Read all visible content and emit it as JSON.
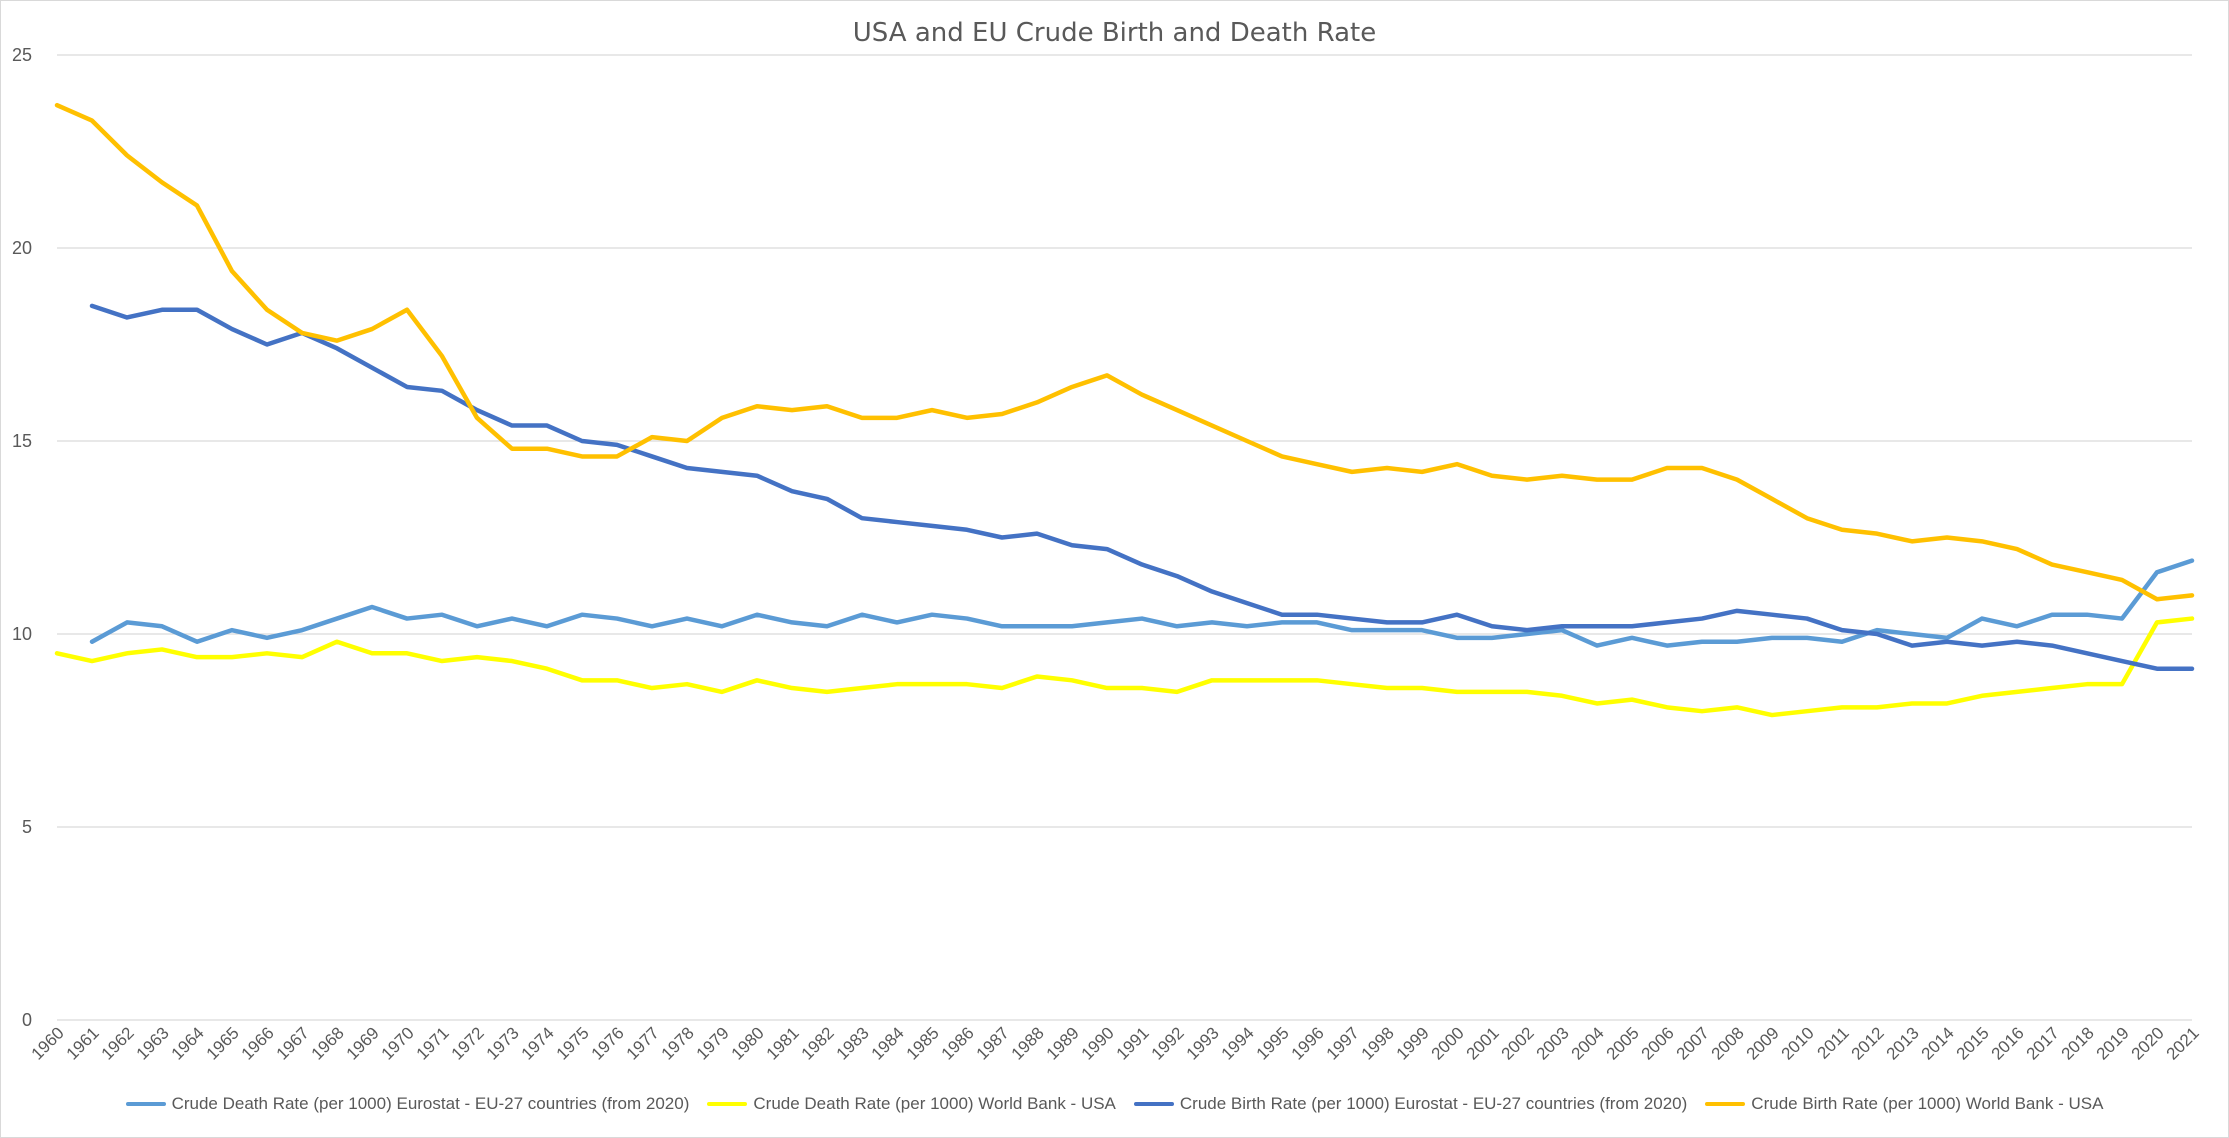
{
  "chart_data": {
    "type": "line",
    "title": "USA and EU Crude Birth and Death Rate",
    "xlabel": "",
    "ylabel": "",
    "ylim": [
      0,
      25
    ],
    "yticks": [
      "0",
      "5",
      "10",
      "15",
      "20",
      "25"
    ],
    "grid": true,
    "legend_position": "bottom",
    "categories": [
      "1960",
      "1961",
      "1962",
      "1963",
      "1964",
      "1965",
      "1966",
      "1967",
      "1968",
      "1969",
      "1970",
      "1971",
      "1972",
      "1973",
      "1974",
      "1975",
      "1976",
      "1977",
      "1978",
      "1979",
      "1980",
      "1981",
      "1982",
      "1983",
      "1984",
      "1985",
      "1986",
      "1987",
      "1988",
      "1989",
      "1990",
      "1991",
      "1992",
      "1993",
      "1994",
      "1995",
      "1996",
      "1997",
      "1998",
      "1999",
      "2000",
      "2001",
      "2002",
      "2003",
      "2004",
      "2005",
      "2006",
      "2007",
      "2008",
      "2009",
      "2010",
      "2011",
      "2012",
      "2013",
      "2014",
      "2015",
      "2016",
      "2017",
      "2018",
      "2019",
      "2020",
      "2021"
    ],
    "series": [
      {
        "name": "Crude Death Rate (per 1000) Eurostat - EU-27 countries (from 2020)",
        "color": "#5b9bd5",
        "values": [
          null,
          9.8,
          10.3,
          10.2,
          9.8,
          10.1,
          9.9,
          10.1,
          10.4,
          10.7,
          10.4,
          10.5,
          10.2,
          10.4,
          10.2,
          10.5,
          10.4,
          10.2,
          10.4,
          10.2,
          10.5,
          10.3,
          10.2,
          10.5,
          10.3,
          10.5,
          10.4,
          10.2,
          10.2,
          10.2,
          10.3,
          10.4,
          10.2,
          10.3,
          10.2,
          10.3,
          10.3,
          10.1,
          10.1,
          10.1,
          9.9,
          9.9,
          10.0,
          10.1,
          9.7,
          9.9,
          9.7,
          9.8,
          9.8,
          9.9,
          9.9,
          9.8,
          10.1,
          10.0,
          9.9,
          10.4,
          10.2,
          10.5,
          10.5,
          10.4,
          11.6,
          11.9
        ]
      },
      {
        "name": "Crude Death Rate (per 1000) World Bank - USA",
        "color": "#ffff00",
        "values": [
          9.5,
          9.3,
          9.5,
          9.6,
          9.4,
          9.4,
          9.5,
          9.4,
          9.8,
          9.5,
          9.5,
          9.3,
          9.4,
          9.3,
          9.1,
          8.8,
          8.8,
          8.6,
          8.7,
          8.5,
          8.8,
          8.6,
          8.5,
          8.6,
          8.7,
          8.7,
          8.7,
          8.6,
          8.9,
          8.8,
          8.6,
          8.6,
          8.5,
          8.8,
          8.8,
          8.8,
          8.8,
          8.7,
          8.6,
          8.6,
          8.5,
          8.5,
          8.5,
          8.4,
          8.2,
          8.3,
          8.1,
          8.0,
          8.1,
          7.9,
          8.0,
          8.1,
          8.1,
          8.2,
          8.2,
          8.4,
          8.5,
          8.6,
          8.7,
          8.7,
          10.3,
          10.4
        ]
      },
      {
        "name": "Crude Birth Rate (per 1000) Eurostat - EU-27 countries (from 2020)",
        "color": "#4472c4",
        "values": [
          null,
          18.5,
          18.2,
          18.4,
          18.4,
          17.9,
          17.5,
          17.8,
          17.4,
          16.9,
          16.4,
          16.3,
          15.8,
          15.4,
          15.4,
          15.0,
          14.9,
          14.6,
          14.3,
          14.2,
          14.1,
          13.7,
          13.5,
          13.0,
          12.9,
          12.8,
          12.7,
          12.5,
          12.6,
          12.3,
          12.2,
          11.8,
          11.5,
          11.1,
          10.8,
          10.5,
          10.5,
          10.4,
          10.3,
          10.3,
          10.5,
          10.2,
          10.1,
          10.2,
          10.2,
          10.2,
          10.3,
          10.4,
          10.6,
          10.5,
          10.4,
          10.1,
          10.0,
          9.7,
          9.8,
          9.7,
          9.8,
          9.7,
          9.5,
          9.3,
          9.1,
          9.1
        ]
      },
      {
        "name": "Crude Birth Rate (per 1000) World Bank - USA",
        "color": "#ffc000",
        "values": [
          23.7,
          23.3,
          22.4,
          21.7,
          21.1,
          19.4,
          18.4,
          17.8,
          17.6,
          17.9,
          18.4,
          17.2,
          15.6,
          14.8,
          14.8,
          14.6,
          14.6,
          15.1,
          15.0,
          15.6,
          15.9,
          15.8,
          15.9,
          15.6,
          15.6,
          15.8,
          15.6,
          15.7,
          16.0,
          16.4,
          16.7,
          16.2,
          15.8,
          15.4,
          15.0,
          14.6,
          14.4,
          14.2,
          14.3,
          14.2,
          14.4,
          14.1,
          14.0,
          14.1,
          14.0,
          14.0,
          14.3,
          14.3,
          14.0,
          13.5,
          13.0,
          12.7,
          12.6,
          12.4,
          12.5,
          12.4,
          12.2,
          11.8,
          11.6,
          11.4,
          10.9,
          11.0
        ]
      }
    ]
  }
}
